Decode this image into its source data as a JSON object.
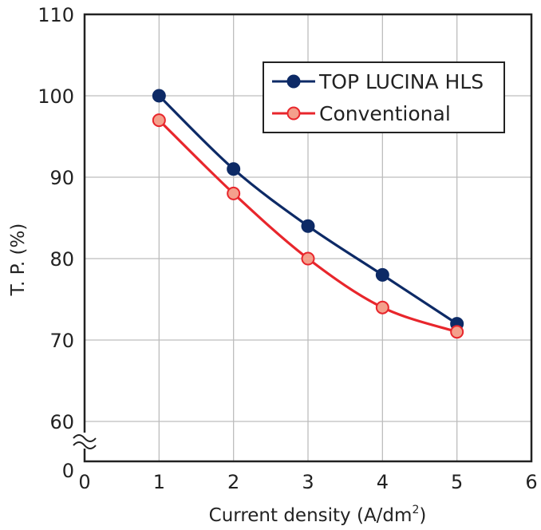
{
  "chart_data": {
    "type": "line",
    "title": "",
    "xlabel": "Current density (A/dm",
    "xlabel_sup": "2",
    "xlabel_end": ")",
    "ylabel": "T. P. (%)",
    "x_ticks": [
      "0",
      "1",
      "2",
      "3",
      "4",
      "5",
      "6"
    ],
    "y_ticks": [
      "60",
      "70",
      "80",
      "90",
      "100",
      "110"
    ],
    "y_zero_label": "0",
    "xlim": [
      0,
      6
    ],
    "ylim": [
      60,
      110
    ],
    "y_axis_break": true,
    "grid": true,
    "legend_position": "top-right",
    "series": [
      {
        "name": "TOP LUCINA HLS",
        "color": "#0d2a66",
        "marker_fill": "#0d2a66",
        "x": [
          1,
          2,
          3,
          4,
          5
        ],
        "y": [
          100,
          91,
          84,
          78,
          72
        ]
      },
      {
        "name": "Conventional",
        "color": "#e8262c",
        "marker_fill": "#f4a08c",
        "x": [
          1,
          2,
          3,
          4,
          5
        ],
        "y": [
          97,
          88,
          80,
          74,
          71
        ]
      }
    ]
  }
}
